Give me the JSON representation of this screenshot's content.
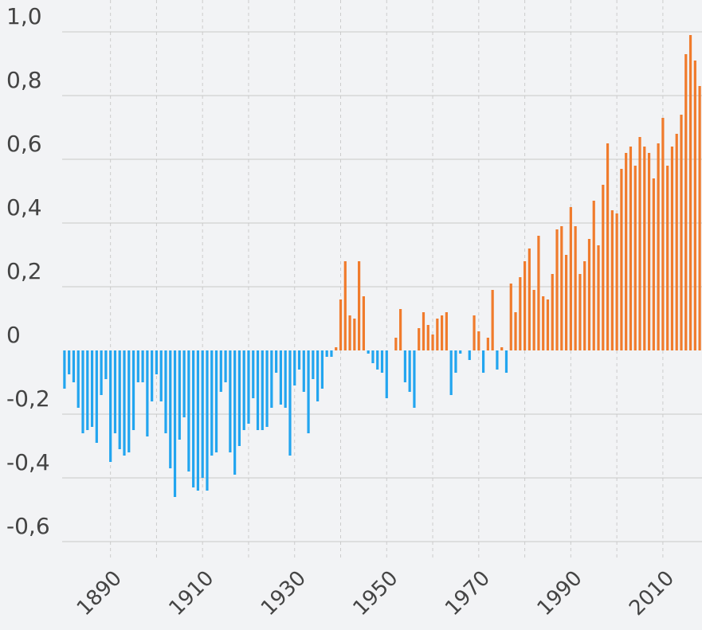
{
  "chart_data": {
    "type": "bar",
    "x": [
      1880,
      1881,
      1882,
      1883,
      1884,
      1885,
      1886,
      1887,
      1888,
      1889,
      1890,
      1891,
      1892,
      1893,
      1894,
      1895,
      1896,
      1897,
      1898,
      1899,
      1900,
      1901,
      1902,
      1903,
      1904,
      1905,
      1906,
      1907,
      1908,
      1909,
      1910,
      1911,
      1912,
      1913,
      1914,
      1915,
      1916,
      1917,
      1918,
      1919,
      1920,
      1921,
      1922,
      1923,
      1924,
      1925,
      1926,
      1927,
      1928,
      1929,
      1930,
      1931,
      1932,
      1933,
      1934,
      1935,
      1936,
      1937,
      1938,
      1939,
      1940,
      1941,
      1942,
      1943,
      1944,
      1945,
      1946,
      1947,
      1948,
      1949,
      1950,
      1951,
      1952,
      1953,
      1954,
      1955,
      1956,
      1957,
      1958,
      1959,
      1960,
      1961,
      1962,
      1963,
      1964,
      1965,
      1966,
      1967,
      1968,
      1969,
      1970,
      1971,
      1972,
      1973,
      1974,
      1975,
      1976,
      1977,
      1978,
      1979,
      1980,
      1981,
      1982,
      1983,
      1984,
      1985,
      1986,
      1987,
      1988,
      1989,
      1990,
      1991,
      1992,
      1993,
      1994,
      1995,
      1996,
      1997,
      1998,
      1999,
      2000,
      2001,
      2002,
      2003,
      2004,
      2005,
      2006,
      2007,
      2008,
      2009,
      2010,
      2011,
      2012,
      2013,
      2014,
      2015,
      2016,
      2017,
      2018
    ],
    "values": [
      -0.12,
      -0.075,
      -0.1,
      -0.18,
      -0.26,
      -0.25,
      -0.24,
      -0.29,
      -0.14,
      -0.09,
      -0.35,
      -0.26,
      -0.31,
      -0.33,
      -0.32,
      -0.25,
      -0.1,
      -0.1,
      -0.27,
      -0.16,
      -0.075,
      -0.16,
      -0.26,
      -0.37,
      -0.46,
      -0.28,
      -0.21,
      -0.38,
      -0.43,
      -0.44,
      -0.4,
      -0.44,
      -0.33,
      -0.32,
      -0.13,
      -0.1,
      -0.32,
      -0.39,
      -0.3,
      -0.25,
      -0.23,
      -0.15,
      -0.25,
      -0.25,
      -0.24,
      -0.18,
      -0.07,
      -0.17,
      -0.18,
      -0.33,
      -0.11,
      -0.06,
      -0.13,
      -0.26,
      -0.09,
      -0.16,
      -0.12,
      -0.02,
      -0.02,
      0.01,
      0.16,
      0.28,
      0.11,
      0.1,
      0.28,
      0.17,
      -0.01,
      -0.04,
      -0.06,
      -0.07,
      -0.15,
      0,
      0.04,
      0.13,
      -0.1,
      -0.13,
      -0.18,
      0.07,
      0.12,
      0.08,
      0.05,
      0.1,
      0.11,
      0.12,
      -0.14,
      -0.07,
      -0.01,
      0,
      -0.03,
      0.11,
      0.06,
      -0.07,
      0.04,
      0.19,
      -0.06,
      0.01,
      -0.07,
      0.21,
      0.12,
      0.23,
      0.28,
      0.32,
      0.19,
      0.36,
      0.17,
      0.16,
      0.24,
      0.38,
      0.39,
      0.3,
      0.45,
      0.39,
      0.24,
      0.28,
      0.35,
      0.47,
      0.33,
      0.52,
      0.65,
      0.44,
      0.43,
      0.57,
      0.62,
      0.64,
      0.58,
      0.67,
      0.64,
      0.62,
      0.54,
      0.65,
      0.73,
      0.58,
      0.64,
      0.68,
      0.74,
      0.93,
      0.99,
      0.91,
      0.83
    ],
    "color": "#f07b2c",
    "negative_color": "#22a5ef",
    "xlim": [
      1879.5,
      2018.5
    ],
    "xticks": [
      1890,
      1910,
      1930,
      1950,
      1970,
      1990,
      2010
    ],
    "x_grid_ticks": [
      1890,
      1900,
      1910,
      1920,
      1930,
      1940,
      1950,
      1960,
      1970,
      1980,
      1990,
      2000,
      2010
    ],
    "ylim": [
      -0.65,
      1.1
    ],
    "yticks": [
      {
        "value": -0.6,
        "label": "-0,6"
      },
      {
        "value": -0.4,
        "label": "-0,4"
      },
      {
        "value": -0.2,
        "label": "-0,2"
      },
      0,
      {
        "value": 0.2,
        "label": "0,2"
      },
      {
        "value": 0.4,
        "label": "0,4"
      },
      {
        "value": 0.6,
        "label": "0,6"
      },
      {
        "value": 0.8,
        "label": "0,8"
      },
      {
        "value": 1.0,
        "label": "1,0"
      }
    ],
    "grid": true
  }
}
